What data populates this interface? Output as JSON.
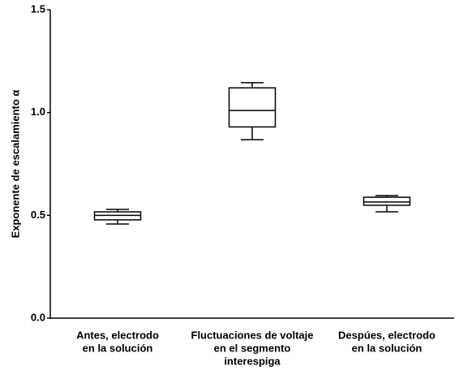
{
  "chart_data": {
    "type": "box",
    "y_label": "Exponente de escalamiento α",
    "categories": [
      [
        "Antes, electrodo",
        "en la solución"
      ],
      [
        "Fluctuaciones de voltaje",
        "en el segmento",
        "interespiga"
      ],
      [
        "Despúes, electrodo",
        "en la solución"
      ]
    ],
    "min": [
      0.458,
      0.868,
      0.517
    ],
    "q1": [
      0.478,
      0.93,
      0.549
    ],
    "median": [
      0.5,
      1.01,
      0.565
    ],
    "q3": [
      0.517,
      1.12,
      0.588
    ],
    "max": [
      0.529,
      1.145,
      0.596
    ],
    "color": "#000000",
    "ylim": [
      0,
      1.5
    ],
    "yticks": [
      {
        "value": 0,
        "label": "0.0"
      },
      0.5,
      {
        "value": 1,
        "label": "1.0"
      },
      1.5
    ]
  }
}
